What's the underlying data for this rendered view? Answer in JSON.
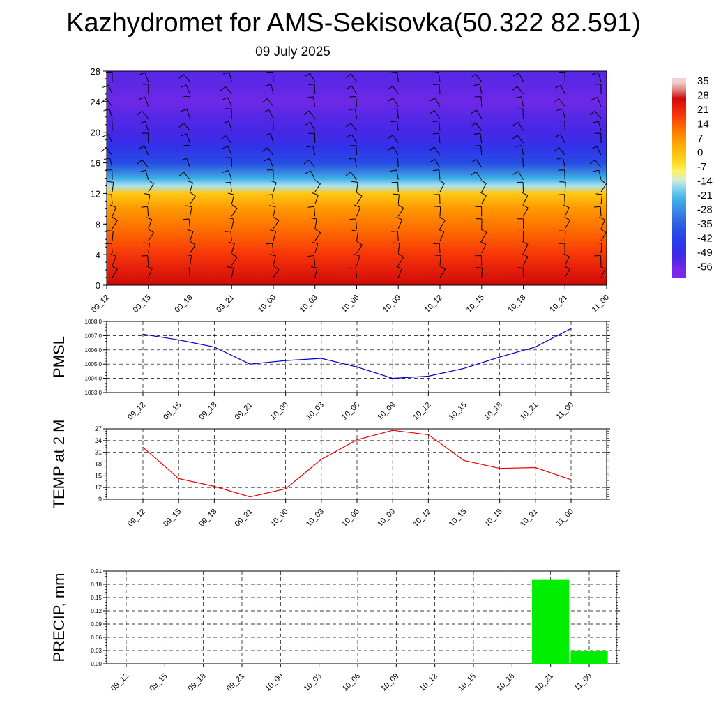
{
  "title": "Kazhydromet for AMS-Sekisovka(50.322 82.591)",
  "subtitle": "09 July 2025",
  "time_labels": [
    "09_12",
    "09_15",
    "09_18",
    "09_21",
    "10_00",
    "10_03",
    "10_06",
    "10_09",
    "10_12",
    "10_15",
    "10_18",
    "10_21",
    "11_00"
  ],
  "colorbar": {
    "labels": [
      "35",
      "28",
      "21",
      "14",
      "7",
      "0",
      "-7",
      "-14",
      "-21",
      "-28",
      "-35",
      "-42",
      "-49",
      "-56"
    ]
  },
  "chart_data": [
    {
      "type": "heatmap",
      "title": "",
      "ylabel": "",
      "ylim": [
        0,
        28
      ],
      "yticks": [
        0,
        4,
        8,
        12,
        16,
        20,
        24,
        28
      ],
      "x": [
        "09_12",
        "09_15",
        "09_18",
        "09_21",
        "10_00",
        "10_03",
        "10_06",
        "10_09",
        "10_12",
        "10_15",
        "10_18",
        "10_21",
        "11_00"
      ],
      "levels": [
        0,
        2,
        4,
        6,
        8,
        10,
        12,
        13,
        14,
        15,
        16,
        18,
        20,
        22,
        24,
        26,
        28
      ],
      "temperature_profile": [
        28,
        24,
        20,
        16,
        12,
        8,
        0,
        -14,
        -22,
        -30,
        -38,
        -45,
        -50,
        -52,
        -55,
        -53,
        -52
      ],
      "colorscale_range": [
        -56,
        35
      ],
      "wind_barbs": true
    },
    {
      "type": "line",
      "ylabel": "PMSL",
      "ylim": [
        1003.0,
        1008.0
      ],
      "yticks": [
        "1003.0",
        "1004.0",
        "1005.0",
        "1006.0",
        "1007.0",
        "1008.0"
      ],
      "x": [
        "09_12",
        "09_15",
        "09_18",
        "09_21",
        "10_00",
        "10_03",
        "10_06",
        "10_09",
        "10_12",
        "10_15",
        "10_18",
        "10_21",
        "11_00"
      ],
      "values": [
        1007.1,
        1006.7,
        1006.2,
        1005.0,
        1005.25,
        1005.4,
        1004.8,
        1004.0,
        1004.15,
        1004.7,
        1005.5,
        1006.2,
        1007.5
      ],
      "color": "#0000cc",
      "grid": true
    },
    {
      "type": "line",
      "ylabel": "TEMP at 2 M",
      "ylim": [
        9,
        27
      ],
      "yticks": [
        "9",
        "12",
        "15",
        "18",
        "21",
        "24",
        "27"
      ],
      "x": [
        "09_12",
        "09_15",
        "09_18",
        "09_21",
        "10_00",
        "10_03",
        "10_06",
        "10_09",
        "10_12",
        "10_15",
        "10_18",
        "10_21",
        "11_00"
      ],
      "values": [
        22.3,
        14.3,
        12.3,
        9.6,
        11.7,
        19.2,
        24.2,
        26.6,
        25.5,
        18.9,
        16.9,
        17.1,
        14.0
      ],
      "color": "#ee0000",
      "grid": true
    },
    {
      "type": "bar",
      "ylabel": "PRECIP, mm",
      "ylim": [
        0,
        0.21
      ],
      "yticks": [
        "0.00",
        "0.03",
        "0.06",
        "0.09",
        "0.12",
        "0.15",
        "0.18",
        "0.21"
      ],
      "categories": [
        "09_12",
        "09_15",
        "09_18",
        "09_21",
        "10_00",
        "10_03",
        "10_06",
        "10_09",
        "10_12",
        "10_15",
        "10_18",
        "10_21",
        "11_00"
      ],
      "values": [
        0,
        0,
        0,
        0,
        0,
        0,
        0,
        0,
        0,
        0,
        0,
        0.19,
        0.03
      ],
      "color": "#00ee00",
      "grid": true
    }
  ]
}
